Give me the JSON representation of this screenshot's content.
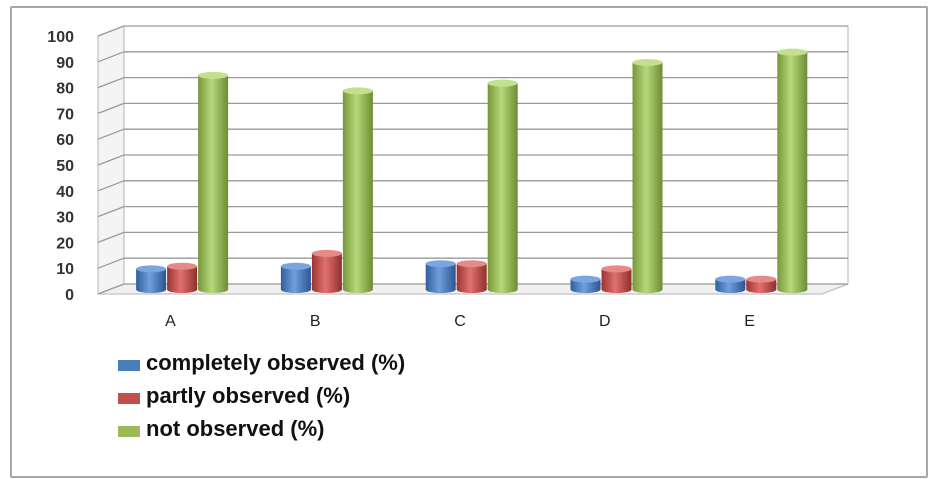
{
  "chart_data": {
    "type": "bar",
    "style": "3d-cylinder",
    "categories": [
      "A",
      "B",
      "C",
      "D",
      "E"
    ],
    "series": [
      {
        "name": "completely observed (%)",
        "color": "#4a7ebb",
        "values": [
          8,
          9,
          10,
          4,
          4
        ]
      },
      {
        "name": "partly observed (%)",
        "color": "#c0504d",
        "values": [
          9,
          14,
          10,
          8,
          4
        ]
      },
      {
        "name": "not observed (%)",
        "color": "#9bbb59",
        "values": [
          83,
          77,
          80,
          88,
          92
        ]
      }
    ],
    "ylim": [
      0,
      100
    ],
    "yticks": [
      "100",
      "90",
      "80",
      "70",
      "60",
      "50",
      "40",
      "30",
      "20",
      "10",
      "0"
    ],
    "grid": true,
    "legend_position": "bottom-left"
  }
}
